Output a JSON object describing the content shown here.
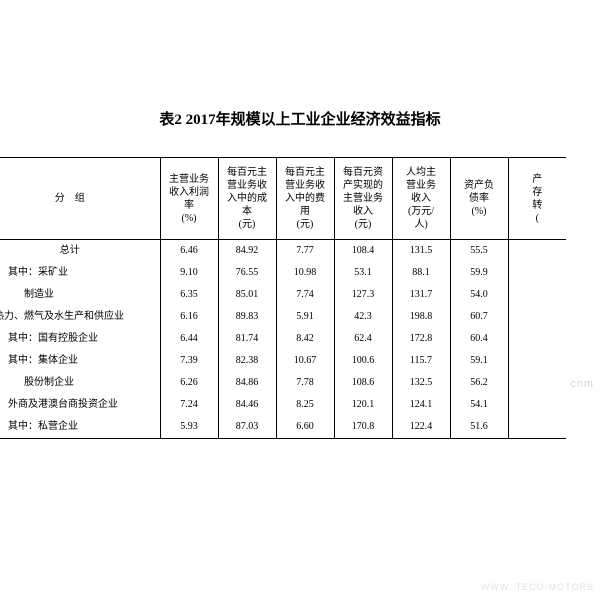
{
  "title": "表2 2017年规模以上工业企业经济效益指标",
  "columns": {
    "group": "分　组",
    "c1": "主营业务收入利润率(%)",
    "c2": "每百元主营业务收入中的成本(元)",
    "c3": "每百元主营业务收入中的费用(元)",
    "c4": "每百元资产实现的主营业务收入(元)",
    "c5": "人均主营业务收入(万元/人)",
    "c6": "资产负债率(%)",
    "c7": "产成存转"
  },
  "rows": [
    {
      "label": "总计",
      "cls": "center",
      "v": [
        "6.46",
        "84.92",
        "7.77",
        "108.4",
        "131.5",
        "55.5",
        ""
      ]
    },
    {
      "label": "其中：采矿业",
      "cls": "indent1",
      "v": [
        "9.10",
        "76.55",
        "10.98",
        "53.1",
        "88.1",
        "59.9",
        ""
      ]
    },
    {
      "label": "制造业",
      "cls": "indent2",
      "v": [
        "6.35",
        "85.01",
        "7.74",
        "127.3",
        "131.7",
        "54.0",
        ""
      ]
    },
    {
      "label": "、热力、燃气及水生产和供应业",
      "cls": "",
      "v": [
        "6.16",
        "89.83",
        "5.91",
        "42.3",
        "198.8",
        "60.7",
        ""
      ]
    },
    {
      "label": "其中：国有控股企业",
      "cls": "indent1",
      "v": [
        "6.44",
        "81.74",
        "8.42",
        "62.4",
        "172.8",
        "60.4",
        ""
      ]
    },
    {
      "label": "其中：集体企业",
      "cls": "indent1",
      "v": [
        "7.39",
        "82.38",
        "10.67",
        "100.6",
        "115.7",
        "59.1",
        ""
      ]
    },
    {
      "label": "股份制企业",
      "cls": "indent2",
      "v": [
        "6.26",
        "84.86",
        "7.78",
        "108.6",
        "132.5",
        "56.2",
        ""
      ]
    },
    {
      "label": "外商及港澳台商投资企业",
      "cls": "indent1",
      "v": [
        "7.24",
        "84.46",
        "8.25",
        "120.1",
        "124.1",
        "54.1",
        ""
      ]
    },
    {
      "label": "其中：私营企业",
      "cls": "indent1",
      "v": [
        "5.93",
        "87.03",
        "6.60",
        "170.8",
        "122.4",
        "51.6",
        ""
      ]
    }
  ],
  "watermark1": "cnm",
  "watermark2": "WWW. TECO-MOTORS",
  "style": {
    "font_family": "SimSun",
    "title_fontsize": 15,
    "cell_fontsize": 10,
    "border_color": "#000000",
    "background": "#ffffff",
    "watermark_color": "#d6d6d6"
  }
}
